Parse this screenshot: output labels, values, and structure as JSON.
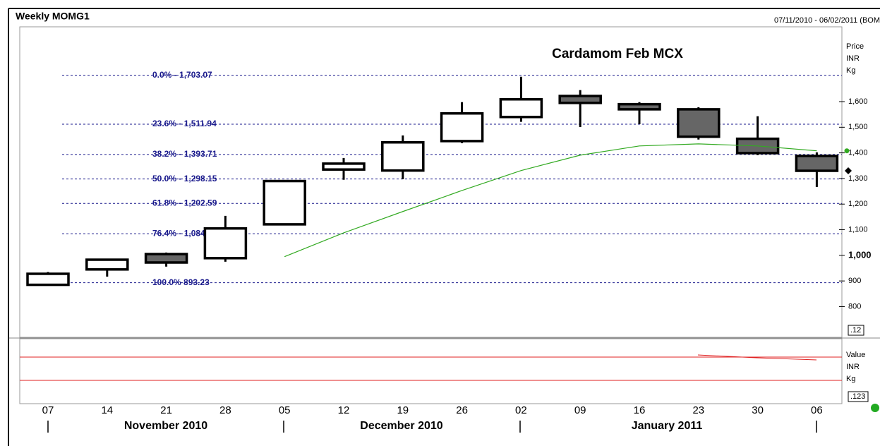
{
  "header": {
    "title": "Weekly MOMG1",
    "date_range": "07/11/2010 - 06/02/2011 (BOM"
  },
  "chart_data": {
    "type": "candlestick",
    "title": "Cardamom Feb MCX",
    "y_axis_label": [
      "Price",
      "INR",
      "Kg"
    ],
    "categories": [
      "07",
      "14",
      "21",
      "28",
      "05",
      "12",
      "19",
      "26",
      "02",
      "09",
      "16",
      "23",
      "30",
      "06"
    ],
    "months": [
      "November 2010",
      "December 2010",
      "January 2011"
    ],
    "open": [
      885,
      945,
      1005,
      989,
      1121,
      1335,
      1331,
      1446,
      1540,
      1622,
      1590,
      1570,
      1455,
      1388
    ],
    "high": [
      935,
      987,
      1011,
      1154,
      1290,
      1380,
      1468,
      1598,
      1697,
      1645,
      1598,
      1578,
      1543,
      1402
    ],
    "low": [
      885,
      917,
      956,
      975,
      1121,
      1295,
      1297,
      1438,
      1521,
      1501,
      1512,
      1452,
      1391,
      1267
    ],
    "close": [
      928,
      983,
      972,
      1105,
      1290,
      1358,
      1441,
      1554,
      1609,
      1595,
      1570,
      1463,
      1399,
      1330
    ],
    "up_color": "#ffffff",
    "down_color": "#666666",
    "average": {
      "color": "#33aa22",
      "values": [
        null,
        null,
        null,
        null,
        995,
        1088,
        1171,
        1253,
        1331,
        1391,
        1427,
        1435,
        1427,
        1408
      ]
    },
    "fibonacci": {
      "color": "#1a1a8c",
      "levels": [
        {
          "value": 1703.07,
          "label": "0.0% - 1,703.07"
        },
        {
          "value": 1511.94,
          "label": "23.6% - 1,511.94"
        },
        {
          "value": 1393.71,
          "label": "38.2% - 1,393.71"
        },
        {
          "value": 1298.15,
          "label": "50.0% - 1,298.15"
        },
        {
          "value": 1202.59,
          "label": "61.8% - 1,202.59"
        },
        {
          "value": 1084.35,
          "label": "76.4% - 1,084.35"
        },
        {
          "value": 893.23,
          "label": "100.0% 893.23"
        }
      ]
    },
    "ylim": [
      680,
      1892
    ],
    "yticks": [
      800,
      900,
      {
        "value": 1000,
        "label": "1,000"
      },
      {
        "value": 1100,
        "label": "1,100"
      },
      {
        "value": 1200,
        "label": "1,200"
      },
      {
        "value": 1300,
        "label": "1,300"
      },
      {
        "value": 1400,
        "label": "1,400"
      },
      {
        "value": 1500,
        "label": "1,500"
      },
      {
        "value": 1600,
        "label": "1,600"
      }
    ],
    "scale_box": ".12",
    "lower_panel": {
      "axis_label": [
        "Value",
        "INR",
        "Kg"
      ],
      "scale_box": ".123"
    }
  }
}
